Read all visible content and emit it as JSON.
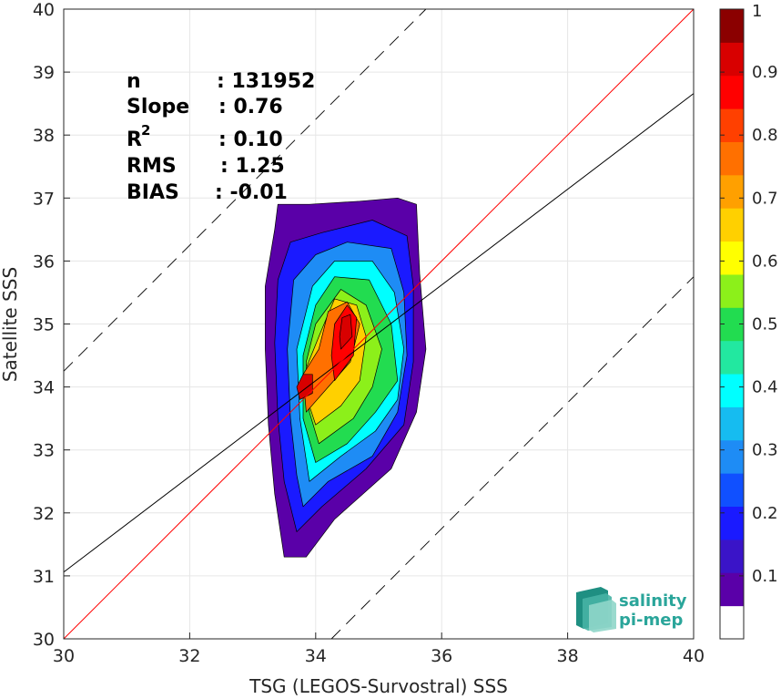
{
  "chart_data": {
    "type": "heatmap",
    "subtype": "density-contour-scatter",
    "xlabel": "TSG (LEGOS-Survostral) SSS",
    "ylabel": "Satellite SSS",
    "xlim": [
      30,
      40
    ],
    "ylim": [
      30,
      40
    ],
    "xticks": [
      30,
      32,
      34,
      36,
      38,
      40
    ],
    "yticks": [
      30,
      31,
      32,
      33,
      34,
      35,
      36,
      37,
      38,
      39,
      40
    ],
    "grid": true,
    "stats": {
      "n_label": "n",
      "n_value": ": 131952",
      "slope_label": "Slope",
      "slope_value": ": 0.76",
      "r2_label": "R",
      "r2_sup": "2",
      "r2_value": ": 0.10",
      "rms_label": "RMS",
      "rms_value": ": 1.25",
      "bias_label": "BIAS",
      "bias_value": ": -0.01"
    },
    "lines": {
      "identity": {
        "color": "#ff0000",
        "slope": 1.0,
        "intercept": 0.0
      },
      "fit": {
        "color": "#000000",
        "slope": 0.76,
        "intercept": 8.26
      },
      "upper_bound": {
        "color": "#000000",
        "dash": true,
        "offset": 4.25
      },
      "lower_bound": {
        "color": "#000000",
        "dash": true,
        "offset": -4.25
      }
    },
    "density_contours": [
      {
        "level": 0.05,
        "points": [
          [
            33.5,
            31.3
          ],
          [
            33.85,
            31.3
          ],
          [
            34.3,
            31.9
          ],
          [
            35.2,
            32.7
          ],
          [
            35.6,
            33.6
          ],
          [
            35.75,
            34.6
          ],
          [
            35.65,
            35.8
          ],
          [
            35.6,
            36.9
          ],
          [
            35.3,
            37.0
          ],
          [
            34.7,
            36.95
          ],
          [
            33.9,
            36.9
          ],
          [
            33.4,
            36.9
          ],
          [
            33.35,
            36.5
          ],
          [
            33.2,
            35.6
          ],
          [
            33.2,
            34.6
          ],
          [
            33.25,
            33.4
          ],
          [
            33.35,
            32.3
          ]
        ]
      },
      {
        "level": 0.15,
        "points": [
          [
            33.7,
            31.7
          ],
          [
            34.1,
            32.1
          ],
          [
            34.8,
            32.7
          ],
          [
            35.4,
            33.4
          ],
          [
            35.55,
            34.4
          ],
          [
            35.55,
            35.6
          ],
          [
            35.45,
            36.4
          ],
          [
            34.9,
            36.65
          ],
          [
            34.1,
            36.45
          ],
          [
            33.6,
            36.3
          ],
          [
            33.4,
            35.7
          ],
          [
            33.35,
            34.7
          ],
          [
            33.4,
            33.5
          ],
          [
            33.5,
            32.5
          ]
        ]
      },
      {
        "level": 0.25,
        "points": [
          [
            33.8,
            32.1
          ],
          [
            34.2,
            32.5
          ],
          [
            34.9,
            32.9
          ],
          [
            35.3,
            33.6
          ],
          [
            35.45,
            34.5
          ],
          [
            35.4,
            35.5
          ],
          [
            35.2,
            36.2
          ],
          [
            34.5,
            36.3
          ],
          [
            34.0,
            36.1
          ],
          [
            33.65,
            35.7
          ],
          [
            33.55,
            34.6
          ],
          [
            33.6,
            33.5
          ],
          [
            33.7,
            32.6
          ]
        ]
      },
      {
        "level": 0.35,
        "points": [
          [
            33.9,
            32.5
          ],
          [
            34.4,
            32.9
          ],
          [
            34.95,
            33.3
          ],
          [
            35.3,
            33.8
          ],
          [
            35.4,
            34.6
          ],
          [
            35.25,
            35.5
          ],
          [
            34.9,
            36.0
          ],
          [
            34.3,
            36.0
          ],
          [
            33.95,
            35.6
          ],
          [
            33.7,
            34.6
          ],
          [
            33.75,
            33.5
          ]
        ]
      },
      {
        "level": 0.45,
        "points": [
          [
            34.0,
            32.8
          ],
          [
            34.5,
            33.1
          ],
          [
            34.95,
            33.6
          ],
          [
            35.3,
            34.1
          ],
          [
            35.2,
            35.0
          ],
          [
            34.85,
            35.7
          ],
          [
            34.3,
            35.75
          ],
          [
            34.0,
            35.3
          ],
          [
            33.8,
            34.5
          ],
          [
            33.8,
            33.5
          ]
        ]
      },
      {
        "level": 0.55,
        "points": [
          [
            34.05,
            33.1
          ],
          [
            34.6,
            33.5
          ],
          [
            34.9,
            34.0
          ],
          [
            35.05,
            34.6
          ],
          [
            34.8,
            35.3
          ],
          [
            34.4,
            35.55
          ],
          [
            34.0,
            35.0
          ],
          [
            33.85,
            34.4
          ],
          [
            33.9,
            33.6
          ]
        ]
      },
      {
        "level": 0.65,
        "points": [
          [
            34.0,
            33.4
          ],
          [
            34.4,
            33.7
          ],
          [
            34.7,
            34.1
          ],
          [
            34.8,
            34.8
          ],
          [
            34.65,
            35.3
          ],
          [
            34.3,
            35.4
          ],
          [
            34.05,
            34.8
          ],
          [
            33.85,
            34.3
          ],
          [
            33.9,
            33.7
          ]
        ]
      },
      {
        "level": 0.75,
        "points": [
          [
            33.85,
            33.6
          ],
          [
            34.2,
            34.0
          ],
          [
            34.55,
            34.4
          ],
          [
            34.7,
            35.0
          ],
          [
            34.5,
            35.35
          ],
          [
            34.2,
            35.2
          ],
          [
            34.05,
            34.6
          ],
          [
            33.8,
            34.2
          ]
        ]
      },
      {
        "level": 0.85,
        "points": [
          [
            34.3,
            34.1
          ],
          [
            34.6,
            34.5
          ],
          [
            34.65,
            35.1
          ],
          [
            34.5,
            35.3
          ],
          [
            34.3,
            35.0
          ],
          [
            34.25,
            34.5
          ]
        ]
      },
      {
        "level": 0.9,
        "points": [
          [
            33.75,
            33.8
          ],
          [
            33.95,
            33.9
          ],
          [
            33.95,
            34.2
          ],
          [
            33.8,
            34.2
          ],
          [
            33.7,
            34.0
          ]
        ]
      },
      {
        "level": 0.92,
        "points": [
          [
            34.4,
            34.6
          ],
          [
            34.58,
            34.8
          ],
          [
            34.55,
            35.15
          ],
          [
            34.42,
            35.1
          ],
          [
            34.38,
            34.8
          ]
        ]
      }
    ],
    "colorbar": {
      "range": [
        0,
        1
      ],
      "ticks": [
        0.1,
        0.2,
        0.3,
        0.4,
        0.5,
        0.6,
        0.7,
        0.8,
        0.9,
        1
      ],
      "tick_labels": [
        "0.1",
        "0.2",
        "0.3",
        "0.4",
        "0.5",
        "0.6",
        "0.7",
        "0.8",
        "0.9",
        "1"
      ],
      "colors": [
        "#ffffff",
        "#5a00a8",
        "#3a14c8",
        "#1a1aff",
        "#1050ff",
        "#1e8cf5",
        "#16bcf0",
        "#00ffff",
        "#22e8a0",
        "#22dc50",
        "#8cf01a",
        "#ffff00",
        "#ffd000",
        "#ffa000",
        "#ff7000",
        "#ff4000",
        "#ff0000",
        "#d80000",
        "#8b0000"
      ]
    }
  },
  "logo": {
    "line1": "salinity",
    "line2": "pi-mep"
  }
}
